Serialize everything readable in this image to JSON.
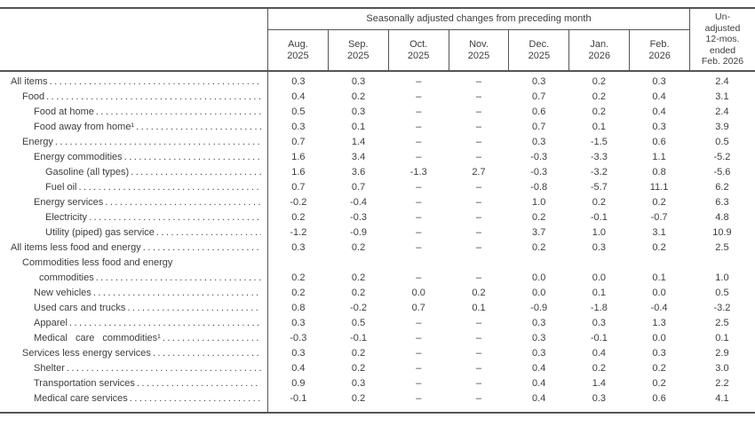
{
  "table": {
    "adjusted_header": "Seasonally adjusted changes from preceding month",
    "unadjusted_header_lines": [
      "Un-",
      "adjusted",
      "12-mos.",
      "ended",
      "Feb. 2026"
    ],
    "months": [
      {
        "line1": "Aug.",
        "line2": "2025"
      },
      {
        "line1": "Sep.",
        "line2": "2025"
      },
      {
        "line1": "Oct.",
        "line2": "2025"
      },
      {
        "line1": "Nov.",
        "line2": "2025"
      },
      {
        "line1": "Dec.",
        "line2": "2025"
      },
      {
        "line1": "Jan.",
        "line2": "2026"
      },
      {
        "line1": "Feb.",
        "line2": "2026"
      }
    ],
    "rows": [
      {
        "label": "All items",
        "indent": 0,
        "values": [
          "0.3",
          "0.3",
          "–",
          "–",
          "0.3",
          "0.2",
          "0.3",
          "2.4"
        ]
      },
      {
        "label": "Food",
        "indent": 1,
        "values": [
          "0.4",
          "0.2",
          "–",
          "–",
          "0.7",
          "0.2",
          "0.4",
          "3.1"
        ]
      },
      {
        "label": "Food at home",
        "indent": 2,
        "values": [
          "0.5",
          "0.3",
          "–",
          "–",
          "0.6",
          "0.2",
          "0.4",
          "2.4"
        ]
      },
      {
        "label": "Food away from home¹",
        "indent": 2,
        "values": [
          "0.3",
          "0.1",
          "–",
          "–",
          "0.7",
          "0.1",
          "0.3",
          "3.9"
        ]
      },
      {
        "label": "Energy",
        "indent": 1,
        "values": [
          "0.7",
          "1.4",
          "–",
          "–",
          "0.3",
          "-1.5",
          "0.6",
          "0.5"
        ]
      },
      {
        "label": "Energy commodities",
        "indent": 2,
        "values": [
          "1.6",
          "3.4",
          "–",
          "–",
          "-0.3",
          "-3.3",
          "1.1",
          "-5.2"
        ]
      },
      {
        "label": "Gasoline (all types)",
        "indent": 3,
        "values": [
          "1.6",
          "3.6",
          "-1.3",
          "2.7",
          "-0.3",
          "-3.2",
          "0.8",
          "-5.6"
        ]
      },
      {
        "label": "Fuel oil",
        "indent": 3,
        "values": [
          "0.7",
          "0.7",
          "–",
          "–",
          "-0.8",
          "-5.7",
          "11.1",
          "6.2"
        ]
      },
      {
        "label": "Energy services",
        "indent": 2,
        "values": [
          "-0.2",
          "-0.4",
          "–",
          "–",
          "1.0",
          "0.2",
          "0.2",
          "6.3"
        ]
      },
      {
        "label": "Electricity",
        "indent": 3,
        "values": [
          "0.2",
          "-0.3",
          "–",
          "–",
          "0.2",
          "-0.1",
          "-0.7",
          "4.8"
        ]
      },
      {
        "label": "Utility (piped) gas service",
        "indent": 3,
        "values": [
          "-1.2",
          "-0.9",
          "–",
          "–",
          "3.7",
          "1.0",
          "3.1",
          "10.9"
        ]
      },
      {
        "label": "All items less food and energy",
        "indent": 0,
        "values": [
          "0.3",
          "0.2",
          "–",
          "–",
          "0.2",
          "0.3",
          "0.2",
          "2.5"
        ]
      },
      {
        "label": "Commodities less food and energy",
        "label2": "commodities",
        "indent": 1,
        "values": [
          "0.2",
          "0.2",
          "–",
          "–",
          "0.0",
          "0.0",
          "0.1",
          "1.0"
        ]
      },
      {
        "label": "New vehicles",
        "indent": 2,
        "values": [
          "0.2",
          "0.2",
          "0.0",
          "0.2",
          "0.0",
          "0.1",
          "0.0",
          "0.5"
        ]
      },
      {
        "label": "Used cars and trucks",
        "indent": 2,
        "values": [
          "0.8",
          "-0.2",
          "0.7",
          "0.1",
          "-0.9",
          "-1.8",
          "-0.4",
          "-3.2"
        ]
      },
      {
        "label": "Apparel",
        "indent": 2,
        "values": [
          "0.3",
          "0.5",
          "–",
          "–",
          "0.3",
          "0.3",
          "1.3",
          "2.5"
        ]
      },
      {
        "label": "Medical care commodities¹",
        "indent": 2,
        "values": [
          "-0.3",
          "-0.1",
          "–",
          "–",
          "0.3",
          "-0.1",
          "0.0",
          "0.1"
        ]
      },
      {
        "label": "Services less energy services",
        "indent": 1,
        "values": [
          "0.3",
          "0.2",
          "–",
          "–",
          "0.3",
          "0.4",
          "0.3",
          "2.9"
        ]
      },
      {
        "label": "Shelter",
        "indent": 2,
        "values": [
          "0.4",
          "0.2",
          "–",
          "–",
          "0.4",
          "0.2",
          "0.2",
          "3.0"
        ]
      },
      {
        "label": "Transportation services",
        "indent": 2,
        "values": [
          "0.9",
          "0.3",
          "–",
          "–",
          "0.4",
          "1.4",
          "0.2",
          "2.2"
        ]
      },
      {
        "label": "Medical care services",
        "indent": 2,
        "values": [
          "-0.1",
          "0.2",
          "–",
          "–",
          "0.4",
          "0.3",
          "0.6",
          "4.1"
        ]
      }
    ]
  }
}
